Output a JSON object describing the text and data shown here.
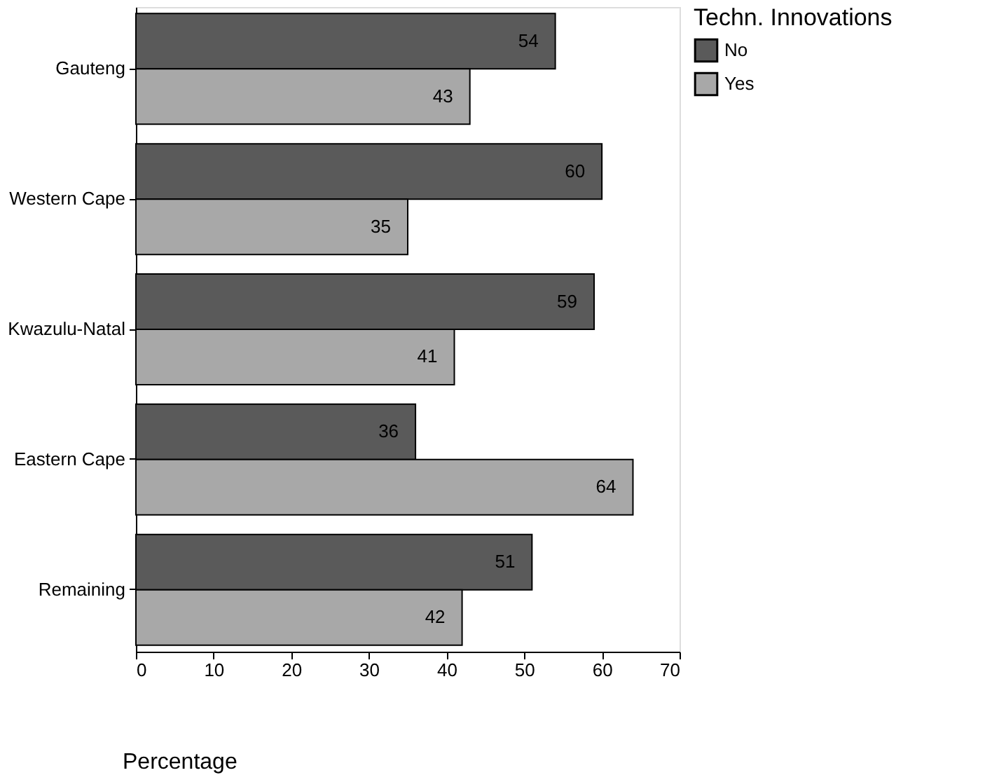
{
  "chart_data": {
    "type": "bar",
    "orientation": "horizontal",
    "categories": [
      "Gauteng",
      "Western Cape",
      "Kwazulu-Natal",
      "Eastern Cape",
      "Remaining"
    ],
    "series": [
      {
        "name": "No",
        "color": "#5a5a5a",
        "values": [
          54,
          60,
          59,
          36,
          51
        ]
      },
      {
        "name": "Yes",
        "color": "#a8a8a8",
        "values": [
          43,
          35,
          41,
          64,
          42
        ]
      }
    ],
    "xlabel": "Percentage",
    "legend_title": "Techn. Innovations",
    "legend": "right",
    "xlim": [
      0,
      70
    ],
    "xticks": [
      0,
      10,
      20,
      30,
      40,
      50,
      60,
      70
    ],
    "grid": false,
    "data_labels": true
  }
}
